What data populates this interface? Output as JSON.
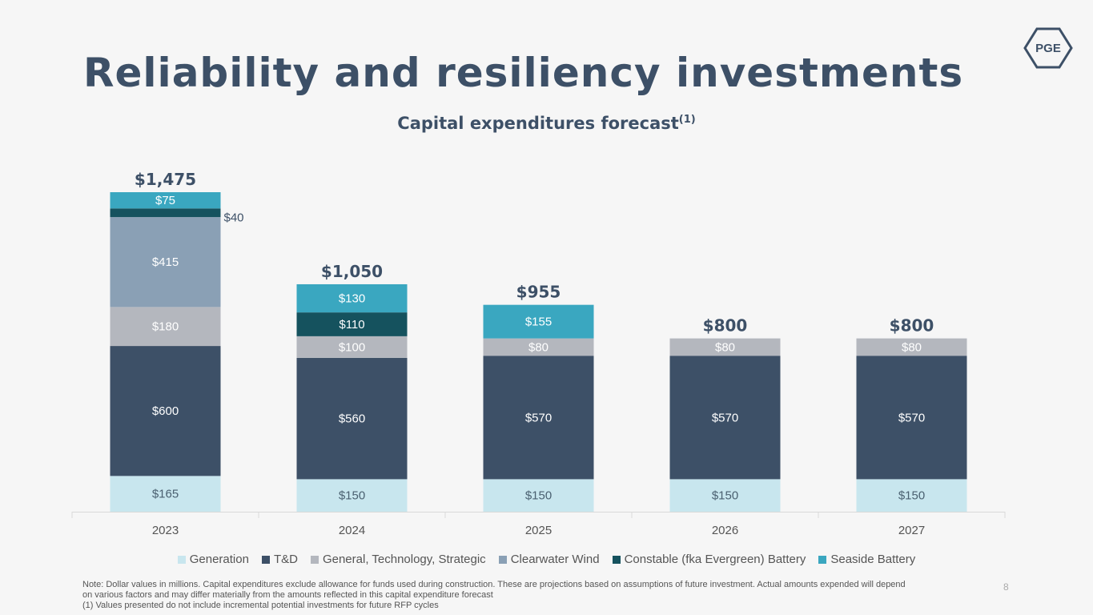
{
  "slide": {
    "title": "Reliability and resiliency investments",
    "subtitle": "Capital expenditures forecast",
    "subtitle_sup": "(1)",
    "logo_text": "PGE",
    "note_lines": [
      "Note: Dollar values in millions. Capital expenditures exclude allowance for funds used during construction. These are projections based on assumptions of future investment. Actual amounts expended will depend",
      "on various factors and may differ materially from the amounts reflected in this capital expenditure forecast",
      "(1) Values presented do not include incremental potential investments for future RFP cycles"
    ],
    "page_number": "8"
  },
  "chart_data": {
    "type": "bar",
    "stacked": true,
    "title": "Capital expenditures forecast(1)",
    "units": "$ millions",
    "xlabel": "",
    "ylabel": "",
    "ylim": [
      0,
      1500
    ],
    "grid": false,
    "legend_position": "bottom",
    "categories": [
      "2023",
      "2024",
      "2025",
      "2026",
      "2027"
    ],
    "series": [
      {
        "name": "Generation",
        "color": "#c8e6ee",
        "label_color": "#4a6070",
        "values": [
          165,
          150,
          150,
          150,
          150
        ],
        "labels": [
          "$165",
          "$150",
          "$150",
          "$150",
          "$150"
        ]
      },
      {
        "name": "T&D",
        "color": "#3d5067",
        "label_color": "#ffffff",
        "values": [
          600,
          560,
          570,
          570,
          570
        ],
        "labels": [
          "$600",
          "$560",
          "$570",
          "$570",
          "$570"
        ]
      },
      {
        "name": "General, Technology, Strategic",
        "color": "#b4b7be",
        "label_color": "#ffffff",
        "values": [
          180,
          100,
          80,
          80,
          80
        ],
        "labels": [
          "$180",
          "$100",
          "$80",
          "$80",
          "$80"
        ]
      },
      {
        "name": "Clearwater Wind",
        "color": "#8aa0b5",
        "label_color": "#ffffff",
        "values": [
          415,
          0,
          0,
          0,
          0
        ],
        "labels": [
          "$415",
          "",
          "",
          "",
          ""
        ]
      },
      {
        "name": "Constable (fka Evergreen) Battery",
        "color": "#15525e",
        "label_color": "#ffffff",
        "values": [
          40,
          110,
          0,
          0,
          0
        ],
        "labels": [
          "$40",
          "$110",
          "",
          "",
          ""
        ]
      },
      {
        "name": "Seaside Battery",
        "color": "#3aa7c0",
        "label_color": "#ffffff",
        "values": [
          75,
          130,
          155,
          0,
          0
        ],
        "labels": [
          "$75",
          "$130",
          "$155",
          "",
          ""
        ]
      }
    ],
    "totals": [
      1475,
      1050,
      955,
      800,
      800
    ],
    "total_labels": [
      "$1,475",
      "$1,050",
      "$955",
      "$800",
      "$800"
    ]
  }
}
